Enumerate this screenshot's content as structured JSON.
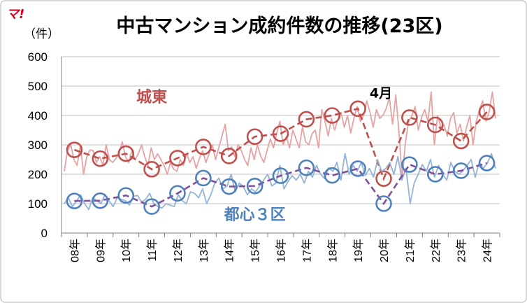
{
  "logo_text": "マ!",
  "chart_data": {
    "type": "line",
    "title": "中古マンション成約件数の推移(23区)",
    "unit_label": "（件）",
    "ylim": [
      0,
      600
    ],
    "y_ticks": [
      "0",
      "100",
      "200",
      "300",
      "400",
      "500",
      "600"
    ],
    "grid": true,
    "categories": [
      "08年",
      "09年",
      "10年",
      "11年",
      "12年",
      "13年",
      "14年",
      "15年",
      "16年",
      "17年",
      "18年",
      "19年",
      "20年",
      "21年",
      "22年",
      "23年",
      "24年"
    ],
    "annotation": "4月",
    "annotation_at": {
      "category": "20年",
      "value": 475
    },
    "series": [
      {
        "name": "城東",
        "label_at": {
          "category": "11年",
          "value": 445
        },
        "color": "#c0504d",
        "marker_color": "#c0504d",
        "monthly_color": "#e6a3a3",
        "april": [
          283,
          253,
          270,
          217,
          255,
          293,
          262,
          328,
          338,
          387,
          400,
          423,
          185,
          393,
          368,
          313,
          412
        ],
        "monthly": [
          210,
          280,
          300,
          250,
          230,
          300,
          200,
          260,
          283,
          280,
          240,
          260,
          230,
          300,
          250,
          240,
          253,
          270,
          310,
          260,
          240,
          280,
          250,
          270,
          300,
          260,
          230,
          290,
          250,
          270,
          250,
          230,
          200,
          240,
          217,
          210,
          250,
          230,
          270,
          240,
          260,
          220,
          255,
          280,
          240,
          270,
          300,
          250,
          290,
          330,
          370,
          280,
          293,
          260,
          300,
          280,
          250,
          230,
          290,
          250,
          300,
          262,
          240,
          280,
          320,
          290,
          340,
          380,
          300,
          328,
          290,
          350,
          320,
          290,
          360,
          310,
          300,
          338,
          350,
          290,
          420,
          380,
          330,
          390,
          350,
          387,
          410,
          360,
          400,
          340,
          390,
          430,
          380,
          400,
          450,
          410,
          360,
          420,
          390,
          400,
          423,
          460,
          370,
          470,
          340,
          185,
          310,
          380,
          400,
          430,
          350,
          393,
          420,
          380,
          480,
          300,
          400,
          360,
          368,
          330,
          390,
          410,
          340,
          370,
          313,
          360,
          400,
          300,
          380,
          420,
          450,
          380,
          412,
          480,
          390
        ]
      },
      {
        "name": "都心３区",
        "label_at": {
          "category": "15年",
          "value": 45
        },
        "color": "#7f4f9f",
        "marker_color": "#4f81bd",
        "monthly_color": "#95b3d7",
        "april": [
          109,
          110,
          128,
          90,
          135,
          187,
          158,
          160,
          195,
          222,
          196,
          219,
          100,
          233,
          200,
          212,
          238
        ],
        "monthly": [
          100,
          120,
          90,
          109,
          130,
          100,
          80,
          120,
          110,
          100,
          130,
          110,
          90,
          120,
          115,
          110,
          95,
          125,
          128,
          105,
          115,
          135,
          100,
          90,
          85,
          100,
          95,
          90,
          130,
          110,
          100,
          140,
          135,
          120,
          150,
          100,
          130,
          170,
          187,
          150,
          160,
          200,
          140,
          170,
          158,
          130,
          150,
          140,
          160,
          180,
          200,
          160,
          170,
          230,
          150,
          175,
          195,
          180,
          200,
          170,
          210,
          190,
          230,
          200,
          185,
          222,
          210,
          240,
          180,
          270,
          200,
          230,
          210,
          240,
          196,
          220,
          190,
          250,
          210,
          219,
          240,
          200,
          260,
          180,
          220,
          100,
          170,
          200,
          233,
          210,
          250,
          190,
          230,
          200,
          180,
          240,
          210,
          200,
          212,
          230,
          250,
          190,
          240,
          220,
          238,
          270,
          220
        ]
      }
    ]
  }
}
